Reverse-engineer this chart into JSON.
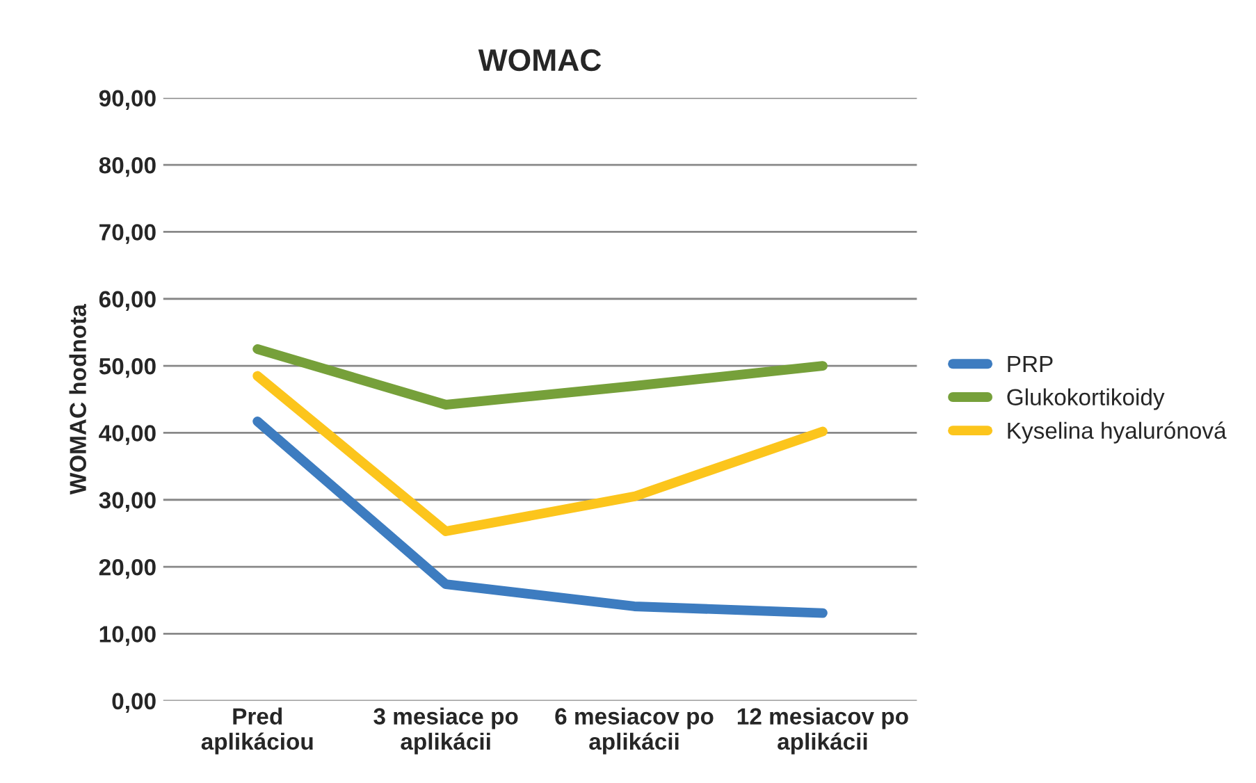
{
  "chart_data": {
    "type": "line",
    "title": "WOMAC",
    "ylabel": "WOMAC hodnota",
    "categories": [
      "Pred\naplikáciou",
      "3 mesiace po\naplikácii",
      "6 mesiacov po\naplikácii",
      "12 mesiacov po\naplikácii"
    ],
    "series": [
      {
        "name": "PRP",
        "color": "#3d7cc0",
        "values": [
          41.7,
          17.4,
          14.1,
          13.1
        ]
      },
      {
        "name": "Glukokortikoidy",
        "color": "#76a03a",
        "values": [
          52.5,
          44.2,
          47.0,
          50.0
        ]
      },
      {
        "name": "Kyselina hyalurónová",
        "color": "#fcc51c",
        "values": [
          48.5,
          25.3,
          30.5,
          40.2
        ]
      }
    ],
    "ylim": [
      0,
      90
    ],
    "yticks": [
      {
        "value": 0,
        "label": "0,00"
      },
      {
        "value": 10,
        "label": "10,00"
      },
      {
        "value": 20,
        "label": "20,00"
      },
      {
        "value": 30,
        "label": "30,00"
      },
      {
        "value": 40,
        "label": "40,00"
      },
      {
        "value": 50,
        "label": "50,00"
      },
      {
        "value": 60,
        "label": "60,00"
      },
      {
        "value": 70,
        "label": "70,00"
      },
      {
        "value": 80,
        "label": "80,00"
      },
      {
        "value": 90,
        "label": "90,00"
      }
    ],
    "grid": "y",
    "legend": "right",
    "marker": "none",
    "line_style": "solid"
  }
}
